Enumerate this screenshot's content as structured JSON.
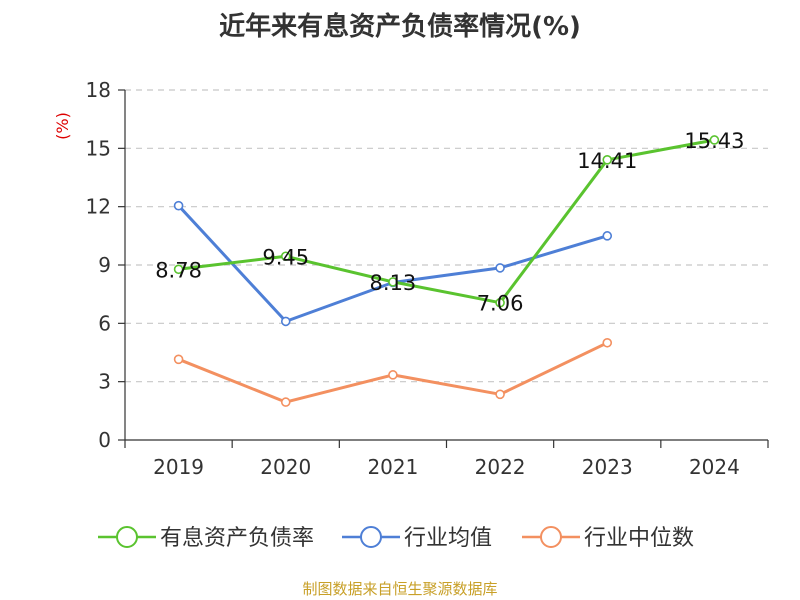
{
  "chart_data": {
    "type": "line",
    "title": "近年来有息资产负债率情况(%)",
    "ylabel": "(%)",
    "ylim": [
      0,
      18
    ],
    "yticks": [
      0,
      3,
      6,
      9,
      12,
      15,
      18
    ],
    "categories": [
      "2019",
      "2020",
      "2021",
      "2022",
      "2023",
      "2024"
    ],
    "grid": true,
    "legend_position": "bottom",
    "series": [
      {
        "name": "有息资产负债率",
        "color": "#5ac32f",
        "values": [
          8.78,
          9.45,
          8.13,
          7.06,
          14.41,
          15.43
        ],
        "labels": [
          "8.78",
          "9.45",
          "8.13",
          "7.06",
          "14.41",
          "15.43"
        ]
      },
      {
        "name": "行业均值",
        "color": "#4e7fd6",
        "values": [
          12.05,
          6.1,
          8.1,
          8.85,
          10.5,
          null
        ]
      },
      {
        "name": "行业中位数",
        "color": "#f39060",
        "values": [
          4.15,
          1.95,
          3.35,
          2.35,
          5.0,
          null
        ]
      }
    ]
  },
  "source": "制图数据来自恒生聚源数据库"
}
